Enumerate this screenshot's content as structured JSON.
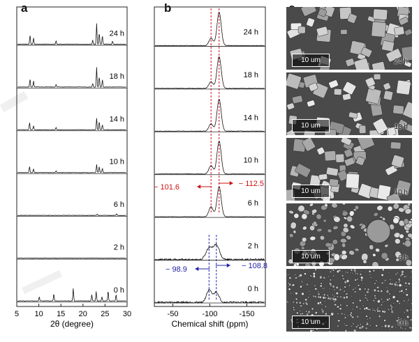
{
  "panels": {
    "a": "a",
    "b": "b",
    "c": "c"
  },
  "chart_data": [
    {
      "type": "line",
      "panel": "a",
      "xlabel": "2θ (degree)",
      "ylabel": "",
      "xlim": [
        5,
        30
      ],
      "xticks": [
        5,
        10,
        15,
        20,
        25,
        30
      ],
      "series": [
        {
          "name": "24 h",
          "peaks": [
            [
              8.0,
              0.45
            ],
            [
              8.8,
              0.3
            ],
            [
              13.9,
              0.15
            ],
            [
              22.2,
              0.2
            ],
            [
              23.1,
              1.0
            ],
            [
              23.7,
              0.55
            ],
            [
              24.4,
              0.4
            ],
            [
              26.7,
              0.15
            ]
          ]
        },
        {
          "name": "18 h",
          "peaks": [
            [
              8.0,
              0.4
            ],
            [
              8.8,
              0.28
            ],
            [
              13.9,
              0.12
            ],
            [
              22.2,
              0.18
            ],
            [
              23.1,
              0.95
            ],
            [
              23.7,
              0.5
            ],
            [
              24.4,
              0.35
            ]
          ]
        },
        {
          "name": "14 h",
          "peaks": [
            [
              7.9,
              0.35
            ],
            [
              8.8,
              0.2
            ],
            [
              13.9,
              0.1
            ],
            [
              23.1,
              0.55
            ],
            [
              23.7,
              0.4
            ],
            [
              24.4,
              0.25
            ]
          ]
        },
        {
          "name": "10 h",
          "peaks": [
            [
              7.9,
              0.3
            ],
            [
              8.8,
              0.18
            ],
            [
              13.9,
              0.08
            ],
            [
              23.1,
              0.38
            ],
            [
              23.7,
              0.3
            ],
            [
              24.4,
              0.2
            ]
          ]
        },
        {
          "name": "6 h",
          "peaks": [
            [
              23.2,
              0.05
            ],
            [
              27.6,
              0.08
            ]
          ]
        },
        {
          "name": "2 h",
          "peaks": []
        },
        {
          "name": "0 h",
          "peaks": [
            [
              10.1,
              0.2
            ],
            [
              13.4,
              0.35
            ],
            [
              17.8,
              0.6
            ],
            [
              22.0,
              0.3
            ],
            [
              23.0,
              0.45
            ],
            [
              24.3,
              0.2
            ],
            [
              25.7,
              0.5
            ],
            [
              27.5,
              0.3
            ]
          ]
        }
      ]
    },
    {
      "type": "line",
      "panel": "b",
      "xlabel": "Chemical shift (ppm)",
      "ylabel": "",
      "xlim": [
        -25,
        -175
      ],
      "xticks": [
        -50,
        -100,
        -150
      ],
      "series": [
        {
          "name": "24 h",
          "peaks": [
            [
              -101.6,
              0.22,
              4
            ],
            [
              -112.5,
              1.0,
              4
            ]
          ]
        },
        {
          "name": "18 h",
          "peaks": [
            [
              -101.6,
              0.2,
              4
            ],
            [
              -112.5,
              0.95,
              4
            ]
          ]
        },
        {
          "name": "14 h",
          "peaks": [
            [
              -101.6,
              0.22,
              4
            ],
            [
              -112.5,
              0.95,
              4
            ]
          ]
        },
        {
          "name": "10 h",
          "peaks": [
            [
              -101.6,
              0.25,
              4
            ],
            [
              -112.5,
              0.98,
              4
            ]
          ]
        },
        {
          "name": "6 h",
          "peaks": [
            [
              -101.6,
              0.3,
              4
            ],
            [
              -112.5,
              0.9,
              4
            ]
          ]
        },
        {
          "name": "2 h",
          "peaks": [
            [
              -98.9,
              0.55,
              6
            ],
            [
              -108.8,
              0.7,
              6
            ]
          ]
        },
        {
          "name": "0 h",
          "peaks": [
            [
              -98.9,
              0.6,
              5
            ],
            [
              -108.8,
              0.5,
              5
            ]
          ]
        }
      ],
      "annotations": [
        {
          "text": "− 101.6",
          "color": "#cc1111",
          "shift": -101.6
        },
        {
          "text": "− 112.5",
          "color": "#cc1111",
          "shift": -112.5
        },
        {
          "text": "− 98.9",
          "color": "#2222aa",
          "shift": -98.9
        },
        {
          "text": "− 108.8",
          "color": "#2222aa",
          "shift": -108.8
        }
      ]
    }
  ],
  "sem_images": [
    {
      "time": "24 h",
      "scale": "10 um",
      "texture": "large"
    },
    {
      "time": "18 h",
      "scale": "10 um",
      "texture": "large"
    },
    {
      "time": "10 h",
      "scale": "10 um",
      "texture": "large"
    },
    {
      "time": "6 h",
      "scale": "10 um",
      "texture": "medium"
    },
    {
      "time": "0 h",
      "scale": "10 um",
      "texture": "fine"
    }
  ]
}
